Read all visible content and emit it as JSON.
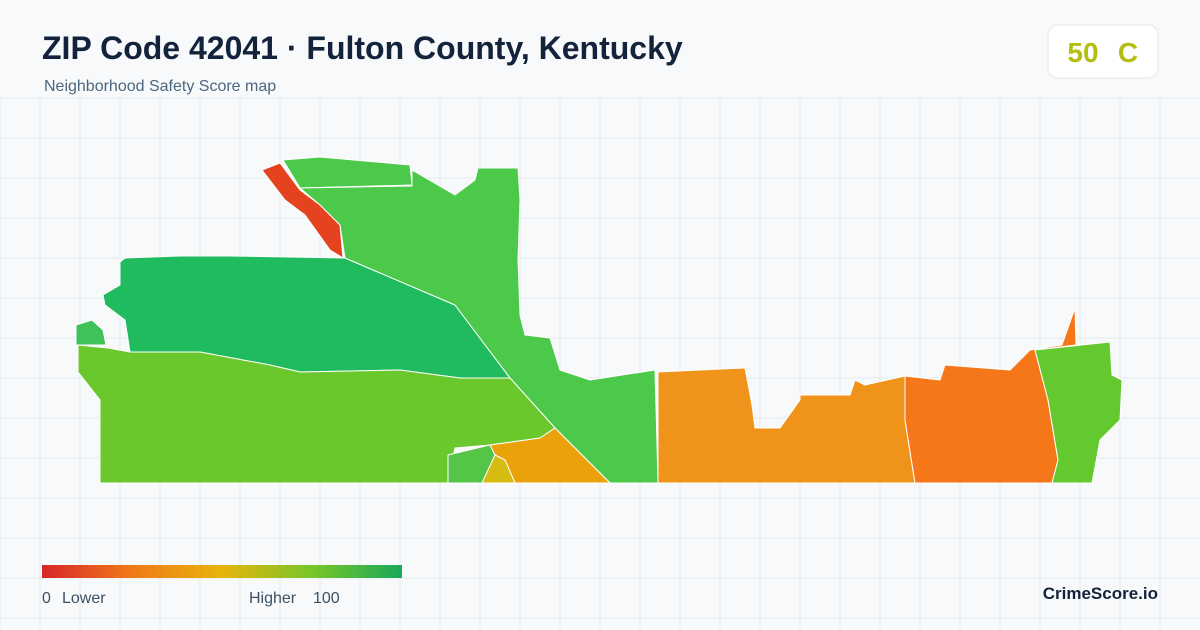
{
  "header": {
    "title": "ZIP Code 42041 · Fulton County, Kentucky",
    "subtitle": "Neighborhood Safety Score map"
  },
  "score": {
    "value": 50,
    "grade": "C"
  },
  "legend": {
    "min": 0,
    "min_label": "Lower",
    "max_label": "Higher",
    "max": 100
  },
  "brand": "CrimeScore.io"
}
